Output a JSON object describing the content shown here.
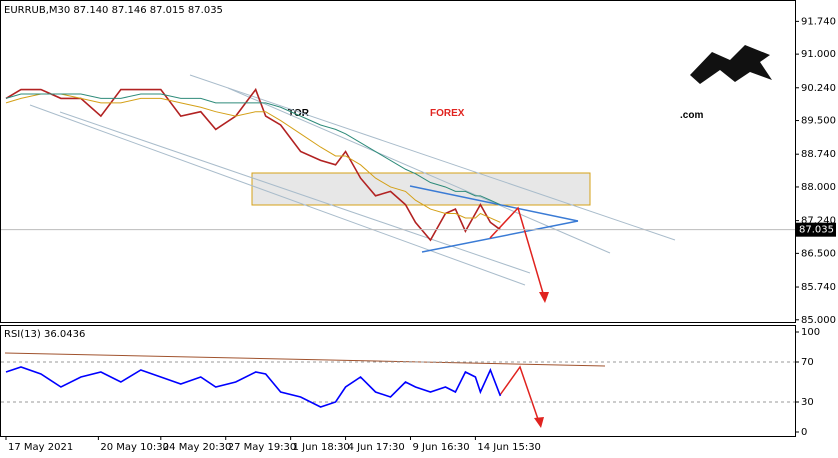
{
  "chart_data": [
    {
      "type": "line",
      "title": "EURRUB,M30 87.140 87.146 87.015 87.035",
      "annotations": [
        "TOR",
        "FOREX",
        ".com"
      ],
      "x": [
        2,
        8,
        16,
        24,
        32,
        40,
        48,
        56,
        64,
        72,
        80,
        86,
        94,
        102,
        106,
        112,
        120,
        128,
        134,
        138,
        144,
        150,
        156,
        162,
        166,
        172,
        178,
        182,
        186,
        190,
        192,
        196,
        200
      ],
      "xlim": [
        0,
        318
      ],
      "xticks": [
        {
          "value": 2,
          "label": "17 May 2021"
        },
        {
          "value": 39,
          "label": "20 May 10:30"
        },
        {
          "value": 64,
          "label": "24 May 20:30"
        },
        {
          "value": 90,
          "label": "27 May 19:30"
        },
        {
          "value": 116,
          "label": "1 Jun 18:30"
        },
        {
          "value": 138,
          "label": "4 Jun 17:30"
        },
        {
          "value": 164,
          "label": "9 Jun 16:30"
        },
        {
          "value": 190,
          "label": "14 Jun 15:30"
        }
      ],
      "series": [
        {
          "color": "#b22222",
          "values": [
            90.0,
            90.2,
            90.2,
            90.0,
            90.0,
            89.6,
            90.2,
            90.2,
            90.2,
            89.6,
            89.7,
            89.3,
            89.6,
            90.2,
            89.6,
            89.4,
            88.8,
            88.6,
            88.5,
            88.8,
            88.2,
            87.8,
            87.9,
            87.6,
            87.2,
            86.8,
            87.4,
            87.5,
            87.0,
            87.4,
            87.6,
            87.2,
            87.035
          ]
        },
        {
          "color": "#d4a017",
          "values": [
            89.9,
            90.0,
            90.1,
            90.1,
            90.0,
            89.9,
            89.9,
            90.0,
            90.0,
            89.9,
            89.8,
            89.7,
            89.6,
            89.7,
            89.7,
            89.5,
            89.2,
            88.9,
            88.7,
            88.7,
            88.5,
            88.2,
            88.0,
            87.9,
            87.7,
            87.5,
            87.4,
            87.4,
            87.3,
            87.3,
            87.4,
            87.3,
            87.2
          ]
        },
        {
          "color": "#2e8b7a",
          "values": [
            90.0,
            90.1,
            90.1,
            90.1,
            90.1,
            90.0,
            90.0,
            90.1,
            90.1,
            90.0,
            90.0,
            89.9,
            89.9,
            89.9,
            89.9,
            89.8,
            89.6,
            89.4,
            89.3,
            89.2,
            89.0,
            88.8,
            88.6,
            88.4,
            88.3,
            88.1,
            88.0,
            87.9,
            87.9,
            87.8,
            87.8,
            87.7,
            87.6
          ]
        }
      ],
      "last_price": 87.035,
      "ylim": [
        84.95,
        92.2
      ],
      "yticks": [
        {
          "value": 85.0,
          "label": "85.000"
        },
        {
          "value": 85.74,
          "label": "85.740"
        },
        {
          "value": 86.5,
          "label": "86.500"
        },
        {
          "value": 87.24,
          "label": "87.240"
        },
        {
          "value": 88.0,
          "label": "88.000"
        },
        {
          "value": 88.74,
          "label": "88.740"
        },
        {
          "value": 89.5,
          "label": "89.500"
        },
        {
          "value": 90.24,
          "label": "90.240"
        },
        {
          "value": 91.0,
          "label": "91.000"
        },
        {
          "value": 91.74,
          "label": "91.740"
        }
      ]
    },
    {
      "type": "line",
      "title": "RSI(13) 36.0436",
      "x": [
        2,
        8,
        16,
        24,
        32,
        40,
        48,
        56,
        64,
        72,
        80,
        86,
        94,
        102,
        106,
        112,
        120,
        128,
        134,
        138,
        144,
        150,
        156,
        162,
        166,
        172,
        178,
        182,
        186,
        190,
        192,
        196,
        200
      ],
      "xlim": [
        0,
        318
      ],
      "series": [
        {
          "color": "#0000ff",
          "values": [
            60,
            65,
            58,
            45,
            55,
            60,
            50,
            62,
            55,
            48,
            55,
            45,
            50,
            60,
            58,
            40,
            35,
            25,
            30,
            45,
            55,
            40,
            35,
            50,
            45,
            40,
            45,
            40,
            60,
            55,
            40,
            62,
            36.0436
          ]
        }
      ],
      "ylim": [
        -4,
        106
      ],
      "yticks": [
        0,
        30,
        70,
        100
      ]
    }
  ]
}
